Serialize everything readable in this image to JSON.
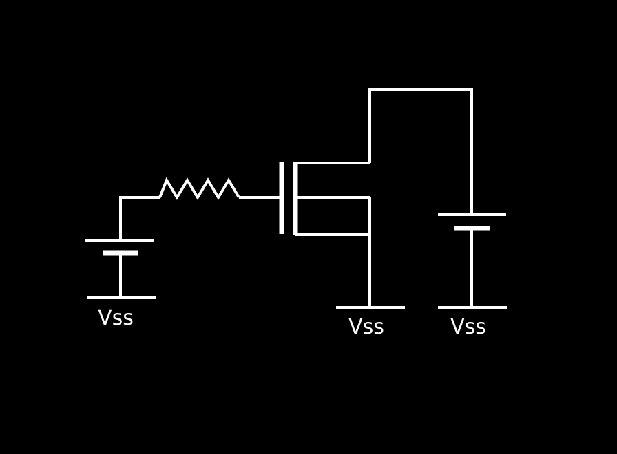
{
  "colors": {
    "background": "#000000",
    "stroke": "#ffffff"
  },
  "labels": {
    "vss_left": "Vss",
    "vss_middle": "Vss",
    "vss_right": "Vss"
  }
}
